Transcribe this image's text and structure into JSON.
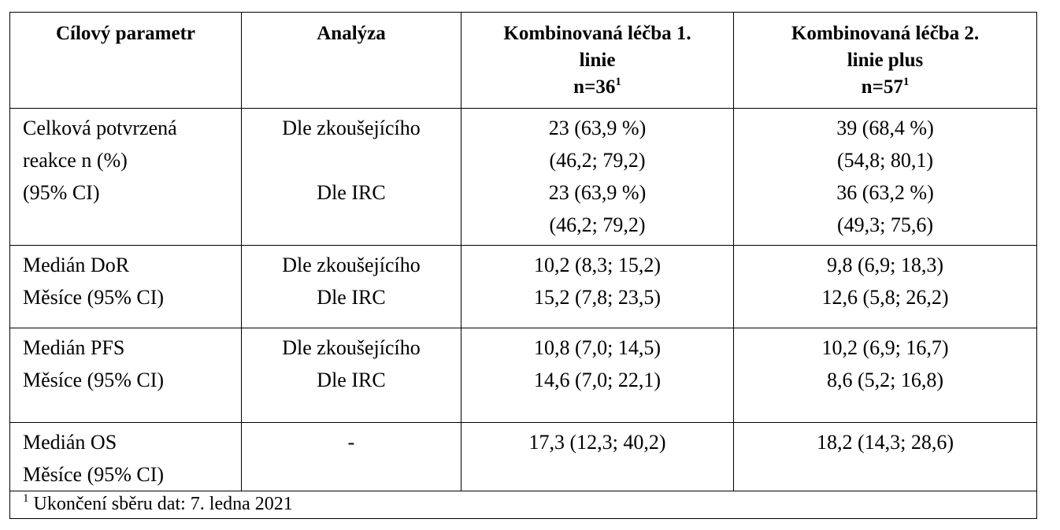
{
  "table": {
    "header": [
      {
        "lines": [
          "Cílový parametr"
        ]
      },
      {
        "lines": [
          "Analýza"
        ]
      },
      {
        "lines": [
          "Kombinovaná léčba 1.",
          "linie",
          "n=36"
        ],
        "sup": "1"
      },
      {
        "lines": [
          "Kombinovaná léčba 2.",
          "linie plus",
          "n=57"
        ],
        "sup": "1"
      }
    ],
    "rows": [
      [
        [
          "Celková potvrzená",
          "reakce n (%)",
          "(95% CI)"
        ],
        [
          "Dle zkoušejícího",
          "Dle IRC"
        ],
        [
          "23 (63,9 %)",
          "(46,2; 79,2)",
          "23 (63,9 %)",
          "(46,2; 79,2)"
        ],
        [
          "39 (68,4 %)",
          "(54,8; 80,1)",
          "36 (63,2 %)",
          "(49,3; 75,6)"
        ]
      ],
      [
        [
          "Medián DoR",
          "Měsíce (95% CI)"
        ],
        [
          "Dle zkoušejícího",
          "Dle IRC"
        ],
        [
          "10,2 (8,3; 15,2)",
          "15,2 (7,8; 23,5)"
        ],
        [
          "9,8 (6,9; 18,3)",
          "12,6 (5,8; 26,2)"
        ]
      ],
      [
        [
          "Medián PFS",
          "Měsíce (95% CI)"
        ],
        [
          "Dle zkoušejícího",
          "Dle IRC"
        ],
        [
          "10,8 (7,0; 14,5)",
          "14,6 (7,0; 22,1)"
        ],
        [
          "10,2 (6,9; 16,7)",
          "8,6 (5,2; 16,8)"
        ]
      ],
      [
        [
          "Medián OS",
          "Měsíce (95% CI)"
        ],
        [
          "-"
        ],
        [
          "17,3 (12,3; 40,2)"
        ],
        [
          "18,2 (14,3; 28,6)"
        ]
      ]
    ],
    "footnote": {
      "sup": "1",
      "text": "Ukončení sběru dat: 7. ledna 2021"
    }
  }
}
